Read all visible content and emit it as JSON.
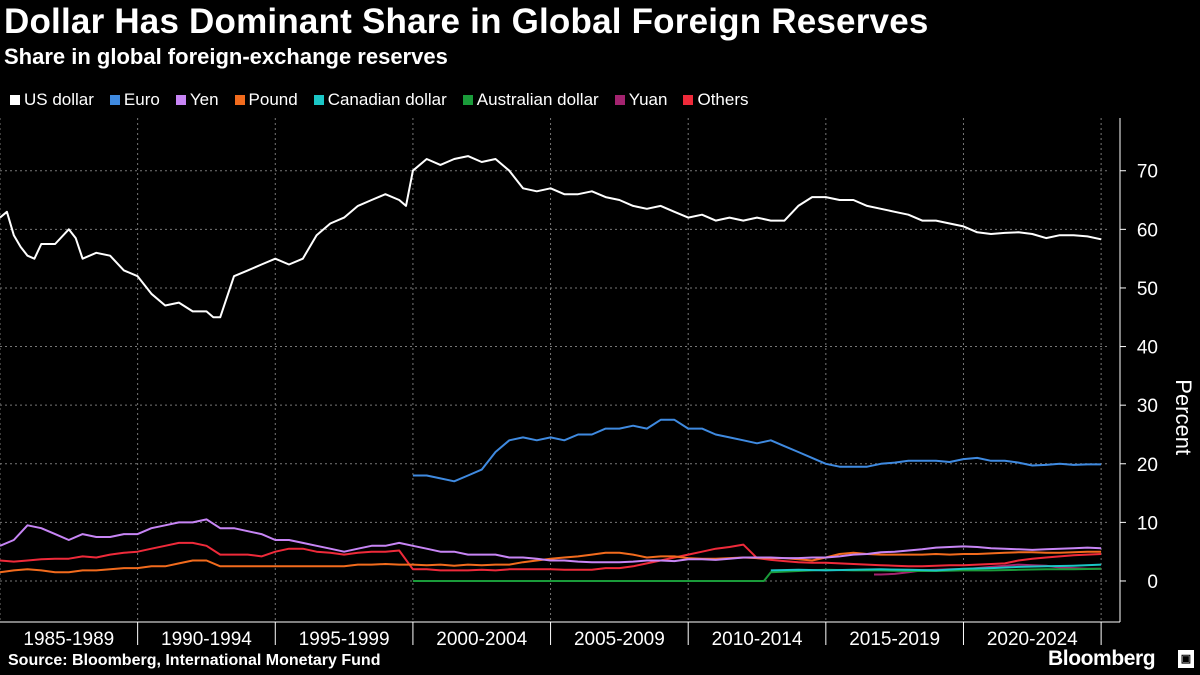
{
  "title": "Dollar Has Dominant Share in Global Foreign Reserves",
  "subtitle": "Share in global foreign-exchange reserves",
  "source": "Source: Bloomberg, International Monetary Fund",
  "brand": "Bloomberg",
  "brand_icon": "terminal-icon",
  "colors": {
    "background": "#000000",
    "US dollar": "#ffffff",
    "Euro": "#3f8ae0",
    "Yen": "#c785f5",
    "Pound": "#f26b1d",
    "Canadian dollar": "#1bc6c6",
    "Australian dollar": "#1a9b3a",
    "Yuan": "#a3236f",
    "Others": "#ef2a3a"
  },
  "chart_data": {
    "type": "line",
    "title": "Share in global foreign-exchange reserves",
    "xlabel": "",
    "ylabel": "Percent",
    "xlim": [
      1985.0,
      2025.25
    ],
    "ylim": [
      -7,
      79
    ],
    "yticks": [
      0,
      10,
      20,
      30,
      40,
      50,
      60,
      70
    ],
    "grid": true,
    "legend_position": "top-left",
    "categories": [
      "1985-1989",
      "1990-1994",
      "1995-1999",
      "2000-2004",
      "2005-2009",
      "2010-2014",
      "2015-2019",
      "2020-2024"
    ],
    "series": [
      {
        "name": "US dollar",
        "x": [
          1985.0,
          1985.25,
          1985.5,
          1985.75,
          1986.0,
          1986.25,
          1986.5,
          1987.0,
          1987.5,
          1987.75,
          1988.0,
          1988.5,
          1989.0,
          1989.5,
          1990.0,
          1990.5,
          1991.0,
          1991.5,
          1992.0,
          1992.5,
          1992.75,
          1993.0,
          1993.5,
          1994.0,
          1994.5,
          1995.0,
          1995.5,
          1996.0,
          1996.5,
          1997.0,
          1997.5,
          1998.0,
          1998.5,
          1999.0,
          1999.5,
          1999.75,
          2000.0,
          2000.5,
          2001.0,
          2001.5,
          2002.0,
          2002.5,
          2003.0,
          2003.5,
          2004.0,
          2004.5,
          2005.0,
          2005.5,
          2006.0,
          2006.5,
          2007.0,
          2007.5,
          2008.0,
          2008.5,
          2009.0,
          2009.5,
          2010.0,
          2010.5,
          2011.0,
          2011.5,
          2012.0,
          2012.5,
          2013.0,
          2013.5,
          2014.0,
          2014.5,
          2015.0,
          2015.5,
          2016.0,
          2016.5,
          2017.0,
          2017.5,
          2018.0,
          2018.5,
          2019.0,
          2019.5,
          2020.0,
          2020.5,
          2021.0,
          2021.5,
          2022.0,
          2022.5,
          2023.0,
          2023.5,
          2024.0,
          2024.5,
          2025.0
        ],
        "values": [
          62,
          63,
          59,
          57,
          55.5,
          55,
          57.5,
          57.5,
          60,
          58.5,
          55,
          56,
          55.5,
          53,
          52,
          49,
          47,
          47.5,
          46,
          46,
          45,
          45,
          52,
          53,
          54,
          55,
          54,
          55,
          59,
          61,
          62,
          64,
          65,
          66,
          65,
          64,
          70,
          72,
          71,
          72,
          72.5,
          71.5,
          72,
          70,
          67,
          66.5,
          67,
          66,
          66,
          66.5,
          65.5,
          65,
          64,
          63.5,
          64,
          63,
          62,
          62.5,
          61.5,
          62,
          61.5,
          62,
          61.5,
          61.5,
          64,
          65.5,
          65.5,
          65,
          65,
          64,
          63.5,
          63,
          62.5,
          61.5,
          61.5,
          61,
          60.5,
          59.5,
          59.2,
          59.4,
          59.5,
          59.2,
          58.5,
          59,
          59,
          58.8,
          58.3
        ]
      },
      {
        "name": "Euro",
        "x": [
          2000.0,
          2000.5,
          2001.0,
          2001.5,
          2002.0,
          2002.5,
          2003.0,
          2003.5,
          2004.0,
          2004.5,
          2005.0,
          2005.5,
          2006.0,
          2006.5,
          2007.0,
          2007.5,
          2008.0,
          2008.5,
          2009.0,
          2009.5,
          2010.0,
          2010.5,
          2011.0,
          2011.5,
          2012.0,
          2012.5,
          2013.0,
          2013.5,
          2014.0,
          2014.5,
          2015.0,
          2015.5,
          2016.0,
          2016.5,
          2017.0,
          2017.5,
          2018.0,
          2018.5,
          2019.0,
          2019.5,
          2020.0,
          2020.5,
          2021.0,
          2021.5,
          2022.0,
          2022.5,
          2023.0,
          2023.5,
          2024.0,
          2024.5,
          2025.0
        ],
        "values": [
          18,
          18,
          17.5,
          17,
          18,
          19,
          22,
          24,
          24.5,
          24,
          24.5,
          24,
          25,
          25,
          26,
          26,
          26.5,
          26,
          27.5,
          27.5,
          26,
          26,
          25,
          24.5,
          24,
          23.5,
          24,
          23,
          22,
          21,
          20,
          19.5,
          19.5,
          19.5,
          20,
          20.2,
          20.5,
          20.5,
          20.5,
          20.3,
          20.8,
          21,
          20.5,
          20.5,
          20.2,
          19.7,
          19.8,
          20,
          19.8,
          19.9,
          19.9
        ]
      },
      {
        "name": "Yen",
        "x": [
          1985.0,
          1985.5,
          1986.0,
          1986.5,
          1987.0,
          1987.5,
          1988.0,
          1988.5,
          1989.0,
          1989.5,
          1990.0,
          1990.5,
          1991.0,
          1991.5,
          1992.0,
          1992.5,
          1993.0,
          1993.5,
          1994.0,
          1994.5,
          1995.0,
          1995.5,
          1996.0,
          1996.5,
          1997.0,
          1997.5,
          1998.0,
          1998.5,
          1999.0,
          1999.5,
          2000.0,
          2000.5,
          2001.0,
          2001.5,
          2002.0,
          2002.5,
          2003.0,
          2003.5,
          2004.0,
          2004.5,
          2005.0,
          2005.5,
          2006.0,
          2006.5,
          2007.0,
          2007.5,
          2008.0,
          2008.5,
          2009.0,
          2009.5,
          2010.0,
          2010.5,
          2011.0,
          2011.5,
          2012.0,
          2012.5,
          2013.0,
          2013.5,
          2014.0,
          2014.5,
          2015.0,
          2015.5,
          2016.0,
          2016.5,
          2017.0,
          2017.5,
          2018.0,
          2018.5,
          2019.0,
          2019.5,
          2020.0,
          2020.5,
          2021.0,
          2021.5,
          2022.0,
          2022.5,
          2023.0,
          2023.5,
          2024.0,
          2024.5,
          2025.0
        ],
        "values": [
          6,
          7,
          9.5,
          9,
          8,
          7,
          8,
          7.5,
          7.5,
          8,
          8,
          9,
          9.5,
          10,
          10,
          10.5,
          9,
          9,
          8.5,
          8,
          7,
          7,
          6.5,
          6,
          5.5,
          5,
          5.5,
          6,
          6,
          6.5,
          6,
          5.5,
          5,
          5,
          4.5,
          4.5,
          4.5,
          4,
          4,
          3.8,
          3.5,
          3.5,
          3.3,
          3.2,
          3.2,
          3.2,
          3.3,
          3.5,
          3.5,
          3.4,
          3.7,
          3.7,
          3.6,
          3.8,
          4,
          4,
          4,
          3.9,
          3.9,
          4,
          4,
          4.2,
          4.5,
          4.6,
          4.9,
          5,
          5.2,
          5.4,
          5.7,
          5.8,
          5.9,
          5.8,
          5.6,
          5.5,
          5.4,
          5.3,
          5.4,
          5.5,
          5.6,
          5.7,
          5.6
        ]
      },
      {
        "name": "Pound",
        "x": [
          1985.0,
          1985.5,
          1986.0,
          1986.5,
          1987.0,
          1987.5,
          1988.0,
          1988.5,
          1989.0,
          1989.5,
          1990.0,
          1990.5,
          1991.0,
          1991.5,
          1992.0,
          1992.5,
          1993.0,
          1993.5,
          1994.0,
          1994.5,
          1995.0,
          1995.5,
          1996.0,
          1996.5,
          1997.0,
          1997.5,
          1998.0,
          1998.5,
          1999.0,
          1999.5,
          2000.0,
          2000.5,
          2001.0,
          2001.5,
          2002.0,
          2002.5,
          2003.0,
          2003.5,
          2004.0,
          2004.5,
          2005.0,
          2005.5,
          2006.0,
          2006.5,
          2007.0,
          2007.5,
          2008.0,
          2008.5,
          2009.0,
          2009.5,
          2010.0,
          2010.5,
          2011.0,
          2011.5,
          2012.0,
          2012.5,
          2013.0,
          2013.5,
          2014.0,
          2014.5,
          2015.0,
          2015.5,
          2016.0,
          2016.5,
          2017.0,
          2017.5,
          2018.0,
          2018.5,
          2019.0,
          2019.5,
          2020.0,
          2020.5,
          2021.0,
          2021.5,
          2022.0,
          2022.5,
          2023.0,
          2023.5,
          2024.0,
          2024.5,
          2025.0
        ],
        "values": [
          1.5,
          1.8,
          2,
          1.8,
          1.5,
          1.5,
          1.8,
          1.8,
          2,
          2.2,
          2.2,
          2.5,
          2.5,
          3,
          3.5,
          3.5,
          2.5,
          2.5,
          2.5,
          2.5,
          2.5,
          2.5,
          2.5,
          2.5,
          2.5,
          2.5,
          2.8,
          2.8,
          2.9,
          2.8,
          2.8,
          2.7,
          2.8,
          2.6,
          2.8,
          2.7,
          2.8,
          2.8,
          3.2,
          3.5,
          3.8,
          4,
          4.2,
          4.5,
          4.8,
          4.8,
          4.5,
          4,
          4.2,
          4.2,
          3.9,
          3.8,
          3.8,
          3.9,
          4,
          3.9,
          3.9,
          3.9,
          3.7,
          3.5,
          4,
          4.6,
          4.8,
          4.6,
          4.5,
          4.5,
          4.5,
          4.5,
          4.6,
          4.5,
          4.6,
          4.6,
          4.7,
          4.8,
          4.9,
          4.9,
          4.8,
          4.8,
          4.9,
          5,
          5
        ]
      },
      {
        "name": "Canadian dollar",
        "x": [
          2013.0,
          2014.0,
          2015.0,
          2016.0,
          2017.0,
          2018.0,
          2019.0,
          2020.0,
          2021.0,
          2022.0,
          2023.0,
          2024.0,
          2025.0
        ],
        "values": [
          1.8,
          1.9,
          1.8,
          1.9,
          2,
          1.9,
          1.8,
          2.1,
          2.2,
          2.4,
          2.5,
          2.6,
          2.8
        ]
      },
      {
        "name": "Australian dollar",
        "x": [
          2000.0,
          2012.75,
          2013.0,
          2013.5,
          2014.0,
          2014.5,
          2015.0,
          2016.0,
          2017.0,
          2018.0,
          2019.0,
          2020.0,
          2021.0,
          2022.0,
          2023.0,
          2024.0,
          2025.0
        ],
        "values": [
          0,
          0,
          1.5,
          1.6,
          1.7,
          1.8,
          1.9,
          1.8,
          1.8,
          1.7,
          1.7,
          1.8,
          1.8,
          1.9,
          2,
          2,
          2.1
        ]
      },
      {
        "name": "Yuan",
        "x": [
          2016.75,
          2017.0,
          2017.5,
          2018.0,
          2018.5,
          2019.0,
          2019.5,
          2020.0,
          2020.5,
          2021.0,
          2021.5,
          2022.0,
          2022.5,
          2023.0,
          2023.5,
          2024.0,
          2024.5,
          2025.0
        ],
        "values": [
          1.1,
          1.1,
          1.2,
          1.5,
          1.8,
          1.9,
          2,
          2,
          2.2,
          2.4,
          2.6,
          2.8,
          2.7,
          2.6,
          2.3,
          2.2,
          2.1,
          2.1
        ]
      },
      {
        "name": "Others",
        "x": [
          1985.0,
          1985.5,
          1986.0,
          1986.5,
          1987.0,
          1987.5,
          1988.0,
          1988.5,
          1989.0,
          1989.5,
          1990.0,
          1990.5,
          1991.0,
          1991.5,
          1992.0,
          1992.5,
          1993.0,
          1993.5,
          1994.0,
          1994.5,
          1995.0,
          1995.5,
          1996.0,
          1996.5,
          1997.0,
          1997.5,
          1998.0,
          1998.5,
          1999.0,
          1999.5,
          2000.0,
          2000.5,
          2001.0,
          2001.5,
          2002.0,
          2002.5,
          2003.0,
          2003.5,
          2004.0,
          2004.5,
          2005.0,
          2005.5,
          2006.0,
          2006.5,
          2007.0,
          2007.5,
          2008.0,
          2008.5,
          2009.0,
          2009.5,
          2010.0,
          2010.5,
          2011.0,
          2011.5,
          2012.0,
          2012.5,
          2013.0,
          2013.5,
          2014.0,
          2014.5,
          2015.0,
          2015.5,
          2016.0,
          2016.5,
          2017.0,
          2017.5,
          2018.0,
          2018.5,
          2019.0,
          2019.5,
          2020.0,
          2020.5,
          2021.0,
          2021.5,
          2022.0,
          2022.5,
          2023.0,
          2023.5,
          2024.0,
          2024.5,
          2025.0
        ],
        "values": [
          3.5,
          3.3,
          3.5,
          3.7,
          3.8,
          3.8,
          4.2,
          4,
          4.5,
          4.8,
          5,
          5.5,
          6,
          6.5,
          6.5,
          6,
          4.5,
          4.5,
          4.5,
          4.2,
          5,
          5.5,
          5.5,
          5,
          4.8,
          4.5,
          4.8,
          5,
          5,
          5.2,
          2,
          2,
          1.8,
          1.8,
          1.8,
          1.9,
          1.8,
          2,
          2,
          2,
          2,
          1.9,
          1.9,
          1.9,
          2.2,
          2.2,
          2.5,
          3,
          3.5,
          4,
          4.5,
          5,
          5.5,
          5.8,
          6.2,
          3.9,
          3.6,
          3.4,
          3.2,
          3.1,
          3.1,
          3,
          2.9,
          2.8,
          2.7,
          2.6,
          2.5,
          2.5,
          2.6,
          2.7,
          2.7,
          2.8,
          2.9,
          3,
          3.5,
          3.8,
          4,
          4.2,
          4.4,
          4.5,
          4.6
        ]
      }
    ]
  }
}
